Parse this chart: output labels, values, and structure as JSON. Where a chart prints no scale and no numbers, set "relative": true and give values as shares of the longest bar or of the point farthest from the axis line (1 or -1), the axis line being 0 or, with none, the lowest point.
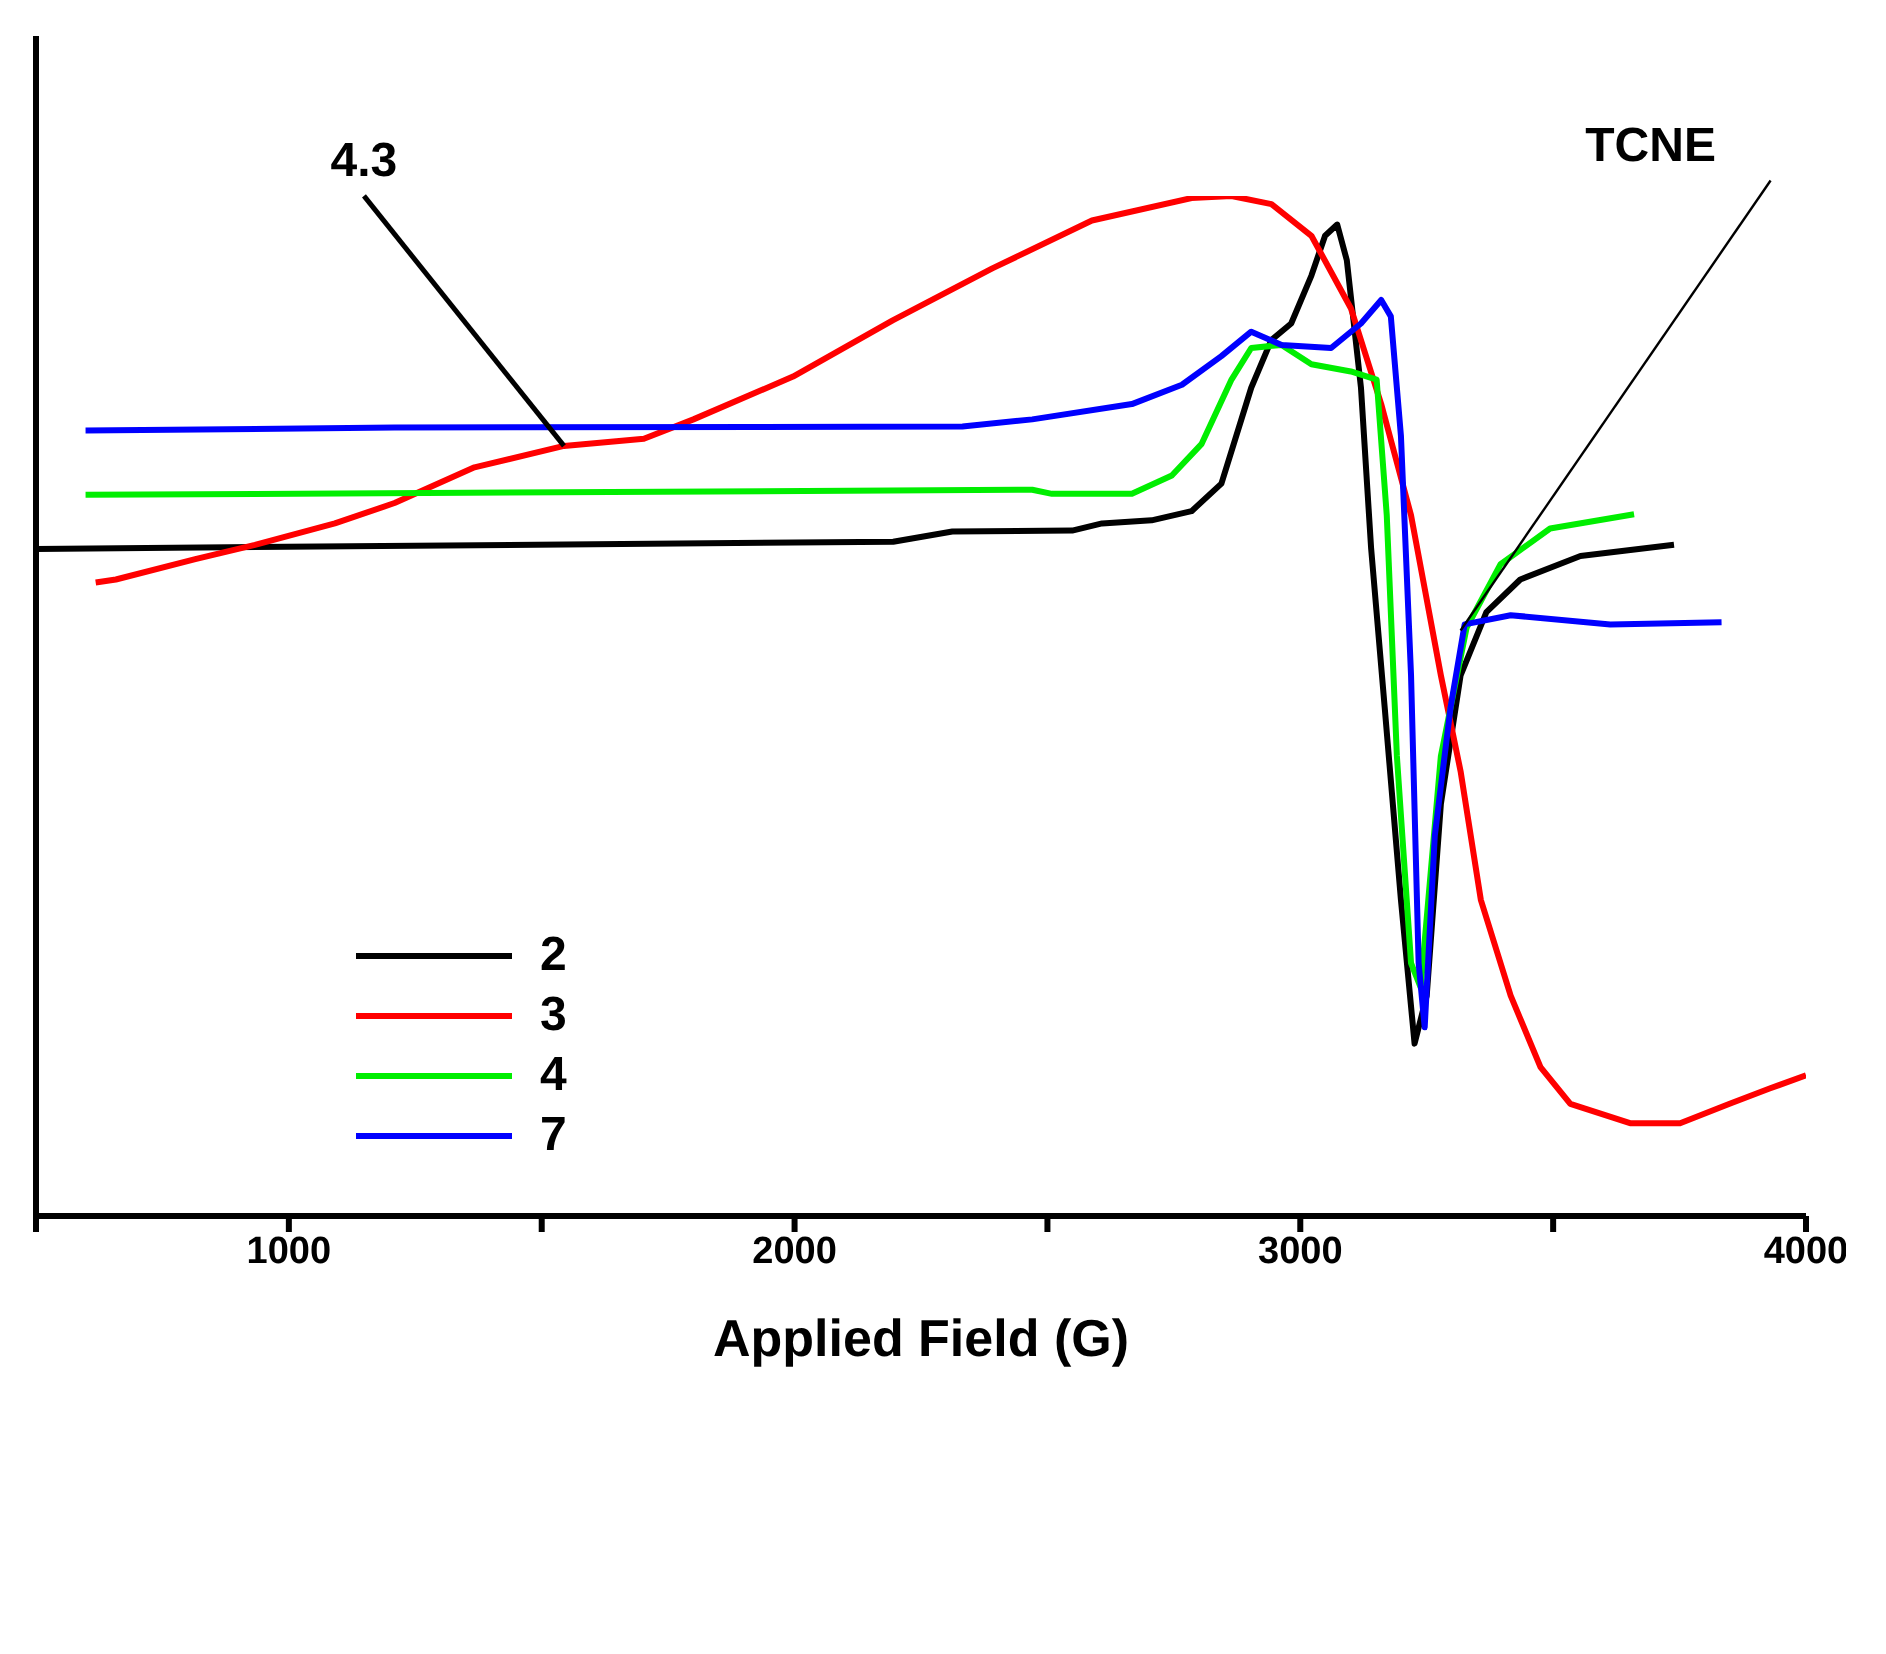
{
  "chart_data": {
    "type": "line",
    "relative": true,
    "xlabel": "Applied Field (G)",
    "xlim": [
      500,
      4000
    ],
    "xticks": [
      {
        "value": 500,
        "label": null
      },
      1000,
      {
        "value": 1500,
        "label": null
      },
      2000,
      {
        "value": 2500,
        "label": null
      },
      3000,
      {
        "value": 3500,
        "label": null
      },
      4000
    ],
    "grid": false,
    "legend": "bottom left",
    "marker": "none",
    "line_style": "solid",
    "annotations": [
      {
        "text": "4.3",
        "x": 1544,
        "y": 0.755
      },
      {
        "text": "TCNE",
        "x": 3317,
        "y": 0.574
      }
    ],
    "series": [
      {
        "name": "2",
        "color": "#000000",
        "x": [
          500,
          2195,
          2312,
          2549,
          2608,
          2706,
          2785,
          2844,
          2903,
          2943,
          2982,
          3022,
          3049,
          3073,
          3092,
          3120,
          3140,
          3167,
          3199,
          3226,
          3250,
          3278,
          3317,
          3368,
          3435,
          3554,
          3739
        ],
        "values": [
          0.654,
          0.661,
          0.671,
          0.672,
          0.679,
          0.682,
          0.691,
          0.718,
          0.812,
          0.859,
          0.875,
          0.922,
          0.961,
          0.972,
          0.937,
          0.812,
          0.655,
          0.498,
          0.31,
          0.169,
          0.216,
          0.404,
          0.53,
          0.592,
          0.624,
          0.647,
          0.658
        ]
      },
      {
        "name": "3",
        "color": "#ff0000",
        "x": [
          618,
          658,
          815,
          933,
          1091,
          1209,
          1367,
          1544,
          1702,
          1800,
          1997,
          2194,
          2391,
          2588,
          2785,
          2864,
          2943,
          3022,
          3100,
          3160,
          3219,
          3278,
          3317,
          3357,
          3416,
          3475,
          3534,
          3652,
          3751,
          3849,
          3928,
          4000
        ],
        "values": [
          0.621,
          0.624,
          0.644,
          0.658,
          0.679,
          0.699,
          0.734,
          0.755,
          0.762,
          0.781,
          0.823,
          0.878,
          0.929,
          0.976,
          0.998,
          1.0,
          0.992,
          0.961,
          0.89,
          0.796,
          0.687,
          0.53,
          0.436,
          0.31,
          0.216,
          0.146,
          0.11,
          0.091,
          0.091,
          0.11,
          0.125,
          0.138
        ]
      },
      {
        "name": "4",
        "color": "#00ee00",
        "x": [
          598,
          2470,
          2509,
          2667,
          2746,
          2805,
          2864,
          2903,
          2963,
          3022,
          3100,
          3151,
          3171,
          3191,
          3219,
          3238,
          3278,
          3329,
          3396,
          3494,
          3660
        ],
        "values": [
          0.707,
          0.712,
          0.708,
          0.708,
          0.726,
          0.757,
          0.82,
          0.851,
          0.854,
          0.835,
          0.828,
          0.82,
          0.687,
          0.451,
          0.248,
          0.224,
          0.451,
          0.577,
          0.639,
          0.674,
          0.688
        ]
      },
      {
        "name": "7",
        "color": "#0000ff",
        "x": [
          598,
          1209,
          2332,
          2470,
          2667,
          2766,
          2844,
          2903,
          2963,
          3061,
          3120,
          3160,
          3179,
          3199,
          3219,
          3234,
          3246,
          3266,
          3297,
          3325,
          3416,
          3613,
          3833
        ],
        "values": [
          0.77,
          0.773,
          0.774,
          0.781,
          0.796,
          0.815,
          0.843,
          0.867,
          0.854,
          0.851,
          0.875,
          0.898,
          0.882,
          0.765,
          0.53,
          0.248,
          0.185,
          0.373,
          0.498,
          0.58,
          0.589,
          0.58,
          0.582
        ]
      }
    ]
  }
}
